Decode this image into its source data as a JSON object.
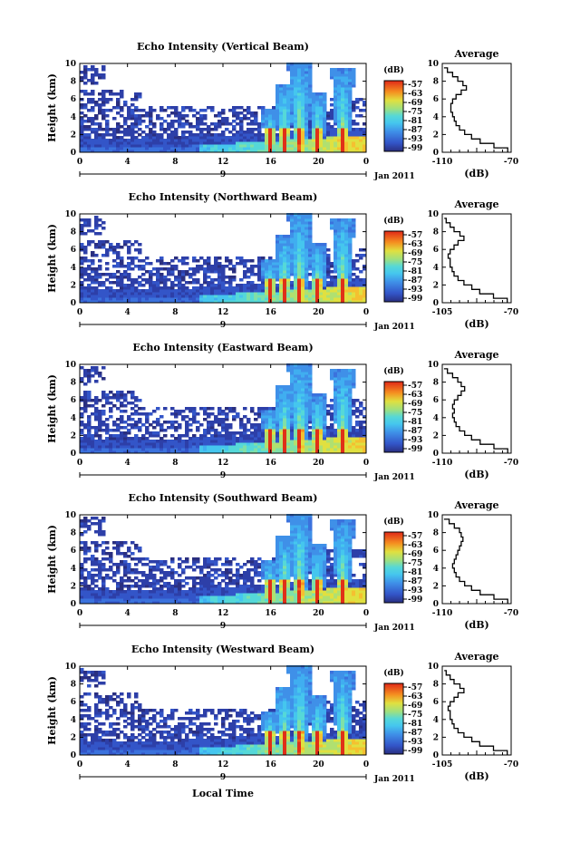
{
  "figure": {
    "xlabel": "Local Time",
    "date_label": "Jan 2011",
    "day_label": "9"
  },
  "panels": [
    {
      "title": "Echo Intensity (Vertical Beam)",
      "profile_xticks": [
        "-110",
        "-70"
      ],
      "profile_xlim": [
        -110,
        -70
      ]
    },
    {
      "title": "Echo Intensity (Northward Beam)",
      "profile_xticks": [
        "-105",
        "-70"
      ],
      "profile_xlim": [
        -105,
        -70
      ]
    },
    {
      "title": "Echo Intensity (Eastward Beam)",
      "profile_xticks": [
        "-110",
        "-70"
      ],
      "profile_xlim": [
        -110,
        -70
      ]
    },
    {
      "title": "Echo Intensity (Southward Beam)",
      "profile_xticks": [
        "-110",
        "-70"
      ],
      "profile_xlim": [
        -110,
        -70
      ]
    },
    {
      "title": "Echo Intensity (Westward Beam)",
      "profile_xticks": [
        "-105",
        "-70"
      ],
      "profile_xlim": [
        -105,
        -70
      ]
    }
  ],
  "chart_data": {
    "type": "heatmap",
    "ylabel": "Height (km)",
    "ylim": [
      0,
      10
    ],
    "yticks": [
      "0",
      "2",
      "4",
      "6",
      "8",
      "10"
    ],
    "xlim": [
      0,
      24
    ],
    "xticks": [
      "0",
      "4",
      "8",
      "12",
      "16",
      "20",
      "0"
    ],
    "colorbar": {
      "label": "(dB)",
      "ticks": [
        "-57",
        "-63",
        "-69",
        "-75",
        "-81",
        "-87",
        "-93",
        "-99"
      ],
      "colors": [
        "#2a2f80",
        "#2d3fa8",
        "#3355c8",
        "#3b72dd",
        "#3f90e8",
        "#40aef0",
        "#45c6ee",
        "#55d8d8",
        "#7ee0a8",
        "#b0e070",
        "#e0e040",
        "#f5c030",
        "#f59020",
        "#f06018",
        "#e03018"
      ]
    },
    "profile": {
      "title": "Average",
      "xlabel": "(dB)",
      "yticks": [
        "0",
        "2",
        "4",
        "6",
        "8",
        "10"
      ],
      "height_km": [
        0,
        0.5,
        1,
        1.5,
        2,
        2.5,
        3,
        3.5,
        4,
        4.5,
        5,
        5.5,
        6,
        6.5,
        7,
        7.5,
        8,
        8.5,
        9,
        9.5
      ],
      "series": [
        {
          "values": [
            -72,
            -80,
            -88,
            -93,
            -97,
            -100,
            -102,
            -103,
            -104,
            -105,
            -105,
            -104,
            -102,
            -99,
            -96,
            -98,
            -101,
            -104,
            -107,
            -109
          ]
        },
        {
          "values": [
            -72,
            -79,
            -86,
            -90,
            -94,
            -97,
            -99,
            -100,
            -101,
            -101,
            -102,
            -101,
            -99,
            -97,
            -94,
            -96,
            -99,
            -101,
            -103,
            -104
          ]
        },
        {
          "values": [
            -72,
            -80,
            -88,
            -93,
            -97,
            -100,
            -102,
            -103,
            -104,
            -103,
            -104,
            -103,
            -101,
            -99,
            -97,
            -99,
            -101,
            -104,
            -107,
            -109
          ]
        },
        {
          "values": [
            -72,
            -80,
            -88,
            -93,
            -97,
            -100,
            -102,
            -103,
            -104,
            -103,
            -102,
            -101,
            -100,
            -99,
            -98,
            -99,
            -100,
            -103,
            -106,
            -109
          ]
        },
        {
          "values": [
            -72,
            -79,
            -86,
            -90,
            -94,
            -97,
            -99,
            -100,
            -101,
            -101,
            -102,
            -101,
            -99,
            -97,
            -94,
            -96,
            -99,
            -101,
            -103,
            -104
          ]
        }
      ]
    },
    "rain_cells_hour": [
      15.8,
      17.0,
      18.3,
      19.8,
      21.9
    ],
    "rain_cell_top_km": [
      4.8,
      7.5,
      10,
      6.5,
      9.3
    ]
  }
}
